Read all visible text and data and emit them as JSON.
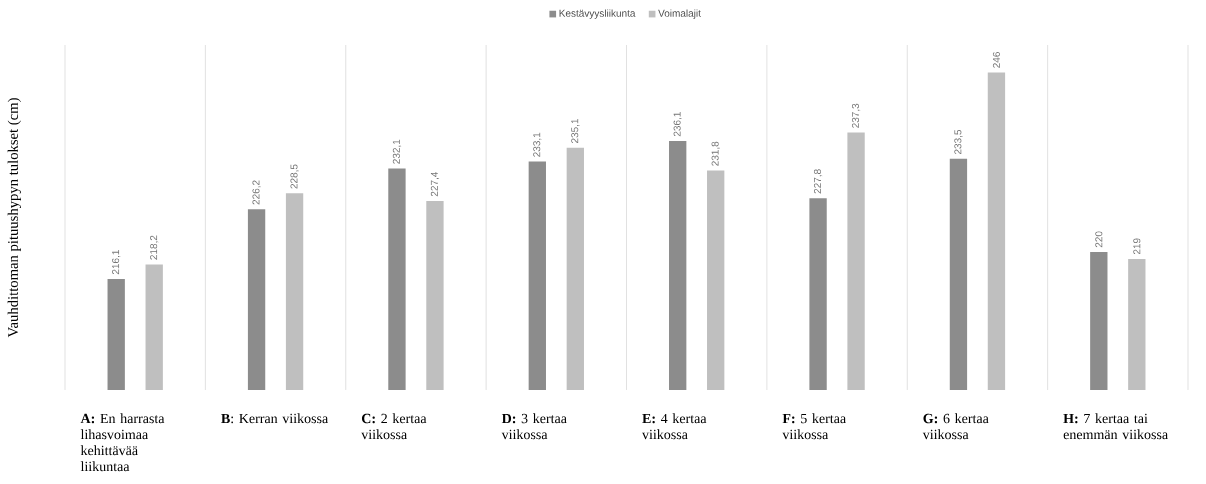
{
  "chart_data": {
    "type": "bar",
    "ylabel": "Vauhdittoman pituushypyn tulokset (cm)",
    "categories": [
      "**A:** En harrasta lihasvoimaa kehittävää liikuntaa",
      "**B**: Kerran viikossa",
      "**C:** 2 kertaa viikossa",
      "**D:** 3 kertaa viikossa",
      "**E:** 4 kertaa viikossa",
      "**F:** 5 kertaa viikossa",
      "**G:** 6 kertaa viikossa",
      "**H:** 7 kertaa tai enemmän viikossa"
    ],
    "series": [
      {
        "name": "Kestävyysliikunta",
        "color": "#8c8c8c",
        "values": [
          216.1,
          226.2,
          232.1,
          233.1,
          236.1,
          227.8,
          233.5,
          220
        ],
        "value_labels": [
          "216,1",
          "226,2",
          "232,1",
          "233,1",
          "236,1",
          "227,8",
          "233,5",
          "220"
        ]
      },
      {
        "name": "Voimalajit",
        "color": "#bfbfbf",
        "values": [
          218.2,
          228.5,
          227.4,
          235.1,
          231.8,
          237.3,
          246,
          219
        ],
        "value_labels": [
          "218,2",
          "228,5",
          "227,4",
          "235,1",
          "231,8",
          "237,3",
          "246",
          "219"
        ]
      }
    ],
    "ylim": [
      200,
      250
    ],
    "grid": "x",
    "legend": "top",
    "tick_labels": "x"
  }
}
